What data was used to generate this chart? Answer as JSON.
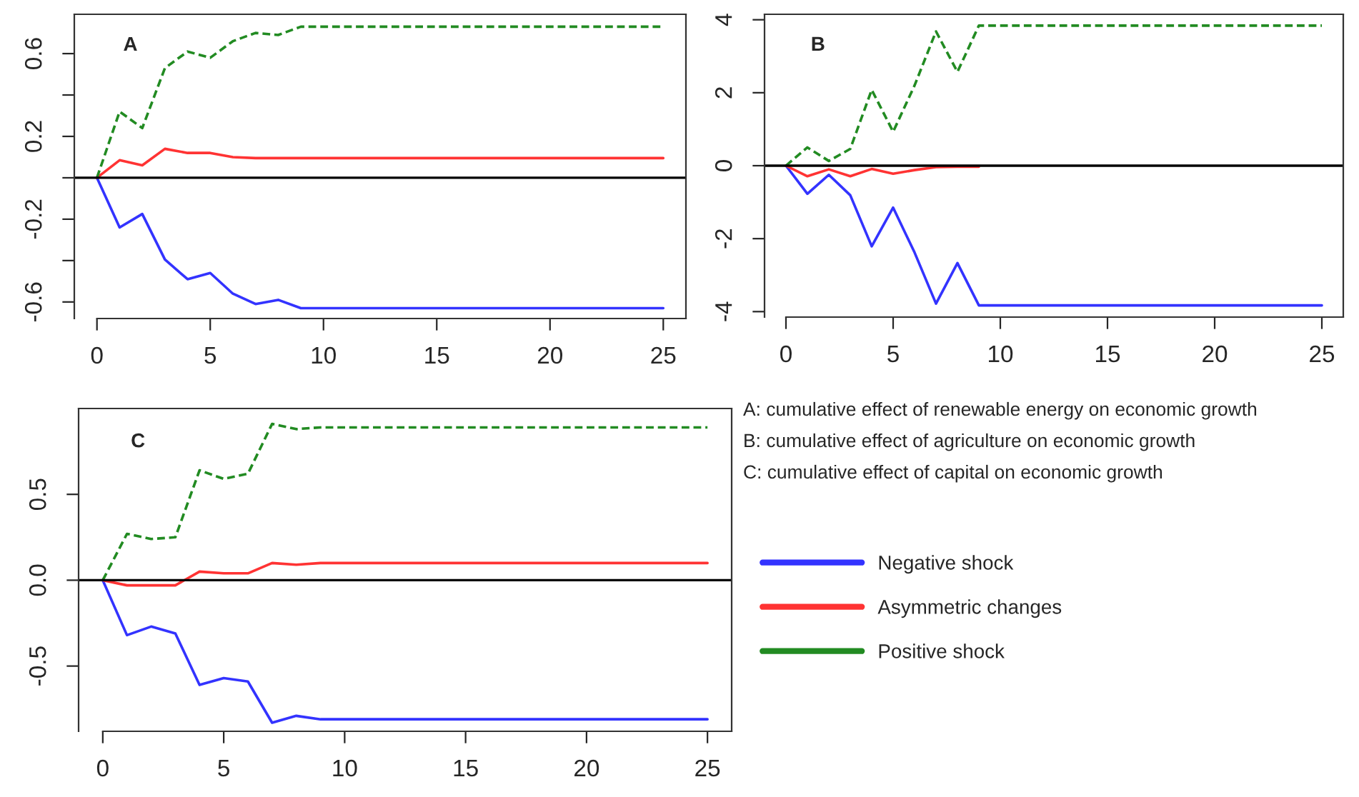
{
  "chart_data": [
    {
      "type": "line",
      "annotations": [
        "A"
      ],
      "xlim": [
        -1,
        26
      ],
      "xticks": [
        0,
        5,
        10,
        15,
        20,
        25
      ],
      "ylim": [
        -0.68,
        0.79
      ],
      "yticks": [
        {
          "value": -0.6,
          "label": "-0.6"
        },
        {
          "value": -0.4,
          "label": null
        },
        {
          "value": -0.2,
          "label": "-0.2"
        },
        {
          "value": 0,
          "label": null
        },
        {
          "value": 0.2,
          "label": "0.2"
        },
        {
          "value": 0.4,
          "label": null
        },
        {
          "value": 0.6,
          "label": "0.6"
        }
      ],
      "ref_lines": [
        {
          "axis": "y",
          "value": 0,
          "color": "#000000"
        }
      ],
      "series": [
        {
          "color": "#3333ff",
          "x": [
            0,
            1,
            2,
            3,
            4,
            5,
            6,
            7,
            8,
            9,
            25
          ],
          "values": [
            0,
            -0.24,
            -0.175,
            -0.395,
            -0.49,
            -0.46,
            -0.56,
            -0.61,
            -0.59,
            -0.63,
            -0.63
          ]
        },
        {
          "color": "#ff3333",
          "x": [
            0,
            1,
            2,
            3,
            4,
            5,
            6,
            7,
            25
          ],
          "values": [
            0,
            0.085,
            0.06,
            0.14,
            0.12,
            0.12,
            0.1,
            0.095,
            0.095
          ]
        },
        {
          "color": "#228b22",
          "line_style": "dashed",
          "x": [
            0,
            1,
            2,
            3,
            4,
            5,
            6,
            7,
            8,
            9,
            25
          ],
          "values": [
            0,
            0.32,
            0.24,
            0.53,
            0.61,
            0.58,
            0.66,
            0.7,
            0.69,
            0.73,
            0.73
          ]
        }
      ]
    },
    {
      "type": "line",
      "annotations": [
        "B"
      ],
      "xlim": [
        -1,
        26
      ],
      "xticks": [
        0,
        5,
        10,
        15,
        20,
        25
      ],
      "ylim": [
        -4.15,
        4.15
      ],
      "yticks": [
        -4,
        -2,
        0,
        2,
        4
      ],
      "ref_lines": [
        {
          "axis": "y",
          "value": 0,
          "color": "#000000"
        }
      ],
      "series": [
        {
          "color": "#3333ff",
          "x": [
            0,
            1,
            2,
            3,
            4,
            5,
            6,
            7,
            8,
            9,
            25
          ],
          "values": [
            0,
            -0.77,
            -0.25,
            -0.81,
            -2.21,
            -1.15,
            -2.38,
            -3.78,
            -2.67,
            -3.83,
            -3.83
          ]
        },
        {
          "color": "#ff3333",
          "x": [
            0,
            1,
            2,
            3,
            4,
            5,
            6,
            7,
            8,
            9
          ],
          "values": [
            0,
            -0.29,
            -0.1,
            -0.29,
            -0.09,
            -0.22,
            -0.12,
            -0.04,
            -0.03,
            -0.03
          ]
        },
        {
          "color": "#228b22",
          "line_style": "dashed",
          "x": [
            0,
            1,
            2,
            3,
            4,
            5,
            6,
            7,
            8,
            9,
            25
          ],
          "values": [
            0,
            0.5,
            0.13,
            0.46,
            2.08,
            0.93,
            2.2,
            3.68,
            2.57,
            3.84,
            3.84
          ]
        }
      ]
    },
    {
      "type": "line",
      "annotations": [
        "C"
      ],
      "legend": "right",
      "xlim": [
        -1,
        26
      ],
      "xticks": [
        0,
        5,
        10,
        15,
        20,
        25
      ],
      "ylim": [
        -0.88,
        1.0
      ],
      "yticks": [
        {
          "value": -0.5,
          "label": "-0.5"
        },
        {
          "value": 0,
          "label": "0.0"
        },
        {
          "value": 0.5,
          "label": "0.5"
        }
      ],
      "ref_lines": [
        {
          "axis": "y",
          "value": 0,
          "color": "#000000"
        }
      ],
      "series": [
        {
          "name": "Negative shock",
          "color": "#3333ff",
          "x": [
            0,
            1,
            2,
            3,
            4,
            5,
            6,
            7,
            8,
            9,
            25
          ],
          "values": [
            0,
            -0.32,
            -0.27,
            -0.31,
            -0.61,
            -0.57,
            -0.59,
            -0.83,
            -0.79,
            -0.81,
            -0.81
          ]
        },
        {
          "name": "Asymmetric changes",
          "color": "#ff3333",
          "x": [
            0,
            1,
            2,
            3,
            4,
            5,
            6,
            7,
            8,
            9,
            25
          ],
          "values": [
            0,
            -0.03,
            -0.03,
            -0.03,
            0.05,
            0.04,
            0.04,
            0.1,
            0.09,
            0.1,
            0.1
          ]
        },
        {
          "name": "Positive shock",
          "color": "#228b22",
          "line_style": "dashed",
          "x": [
            0,
            1,
            2,
            3,
            4,
            5,
            6,
            7,
            8,
            9,
            25
          ],
          "values": [
            0,
            0.27,
            0.24,
            0.25,
            0.64,
            0.59,
            0.62,
            0.91,
            0.88,
            0.89,
            0.89
          ]
        }
      ]
    },
    {
      "type": "other",
      "annotations": [
        "A: cumulative effect of renewable energy on economic growth",
        "B: cumulative effect of agriculture on economic growth",
        "C: cumulative effect of capital on economic growth"
      ]
    }
  ]
}
